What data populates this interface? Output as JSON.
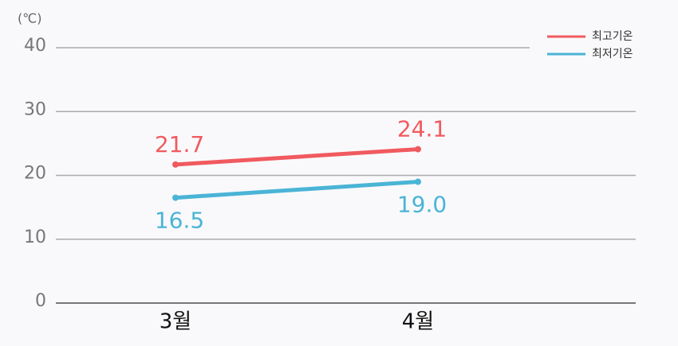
{
  "chart_data": {
    "type": "line",
    "y_label": "(℃)",
    "categories": [
      "3월",
      "4월"
    ],
    "series": [
      {
        "name": "최고기온",
        "color": "#f05a5f",
        "values": [
          21.7,
          24.1
        ],
        "value_labels": [
          "21.7",
          "24.1"
        ]
      },
      {
        "name": "최저기온",
        "color": "#4ab4d6",
        "values": [
          16.5,
          19.0
        ],
        "value_labels": [
          "16.5",
          "19.0"
        ]
      }
    ],
    "ylim": [
      0,
      40
    ],
    "yticks": [
      0,
      10,
      20,
      30,
      40
    ],
    "grid": true,
    "legend": "top-right"
  }
}
